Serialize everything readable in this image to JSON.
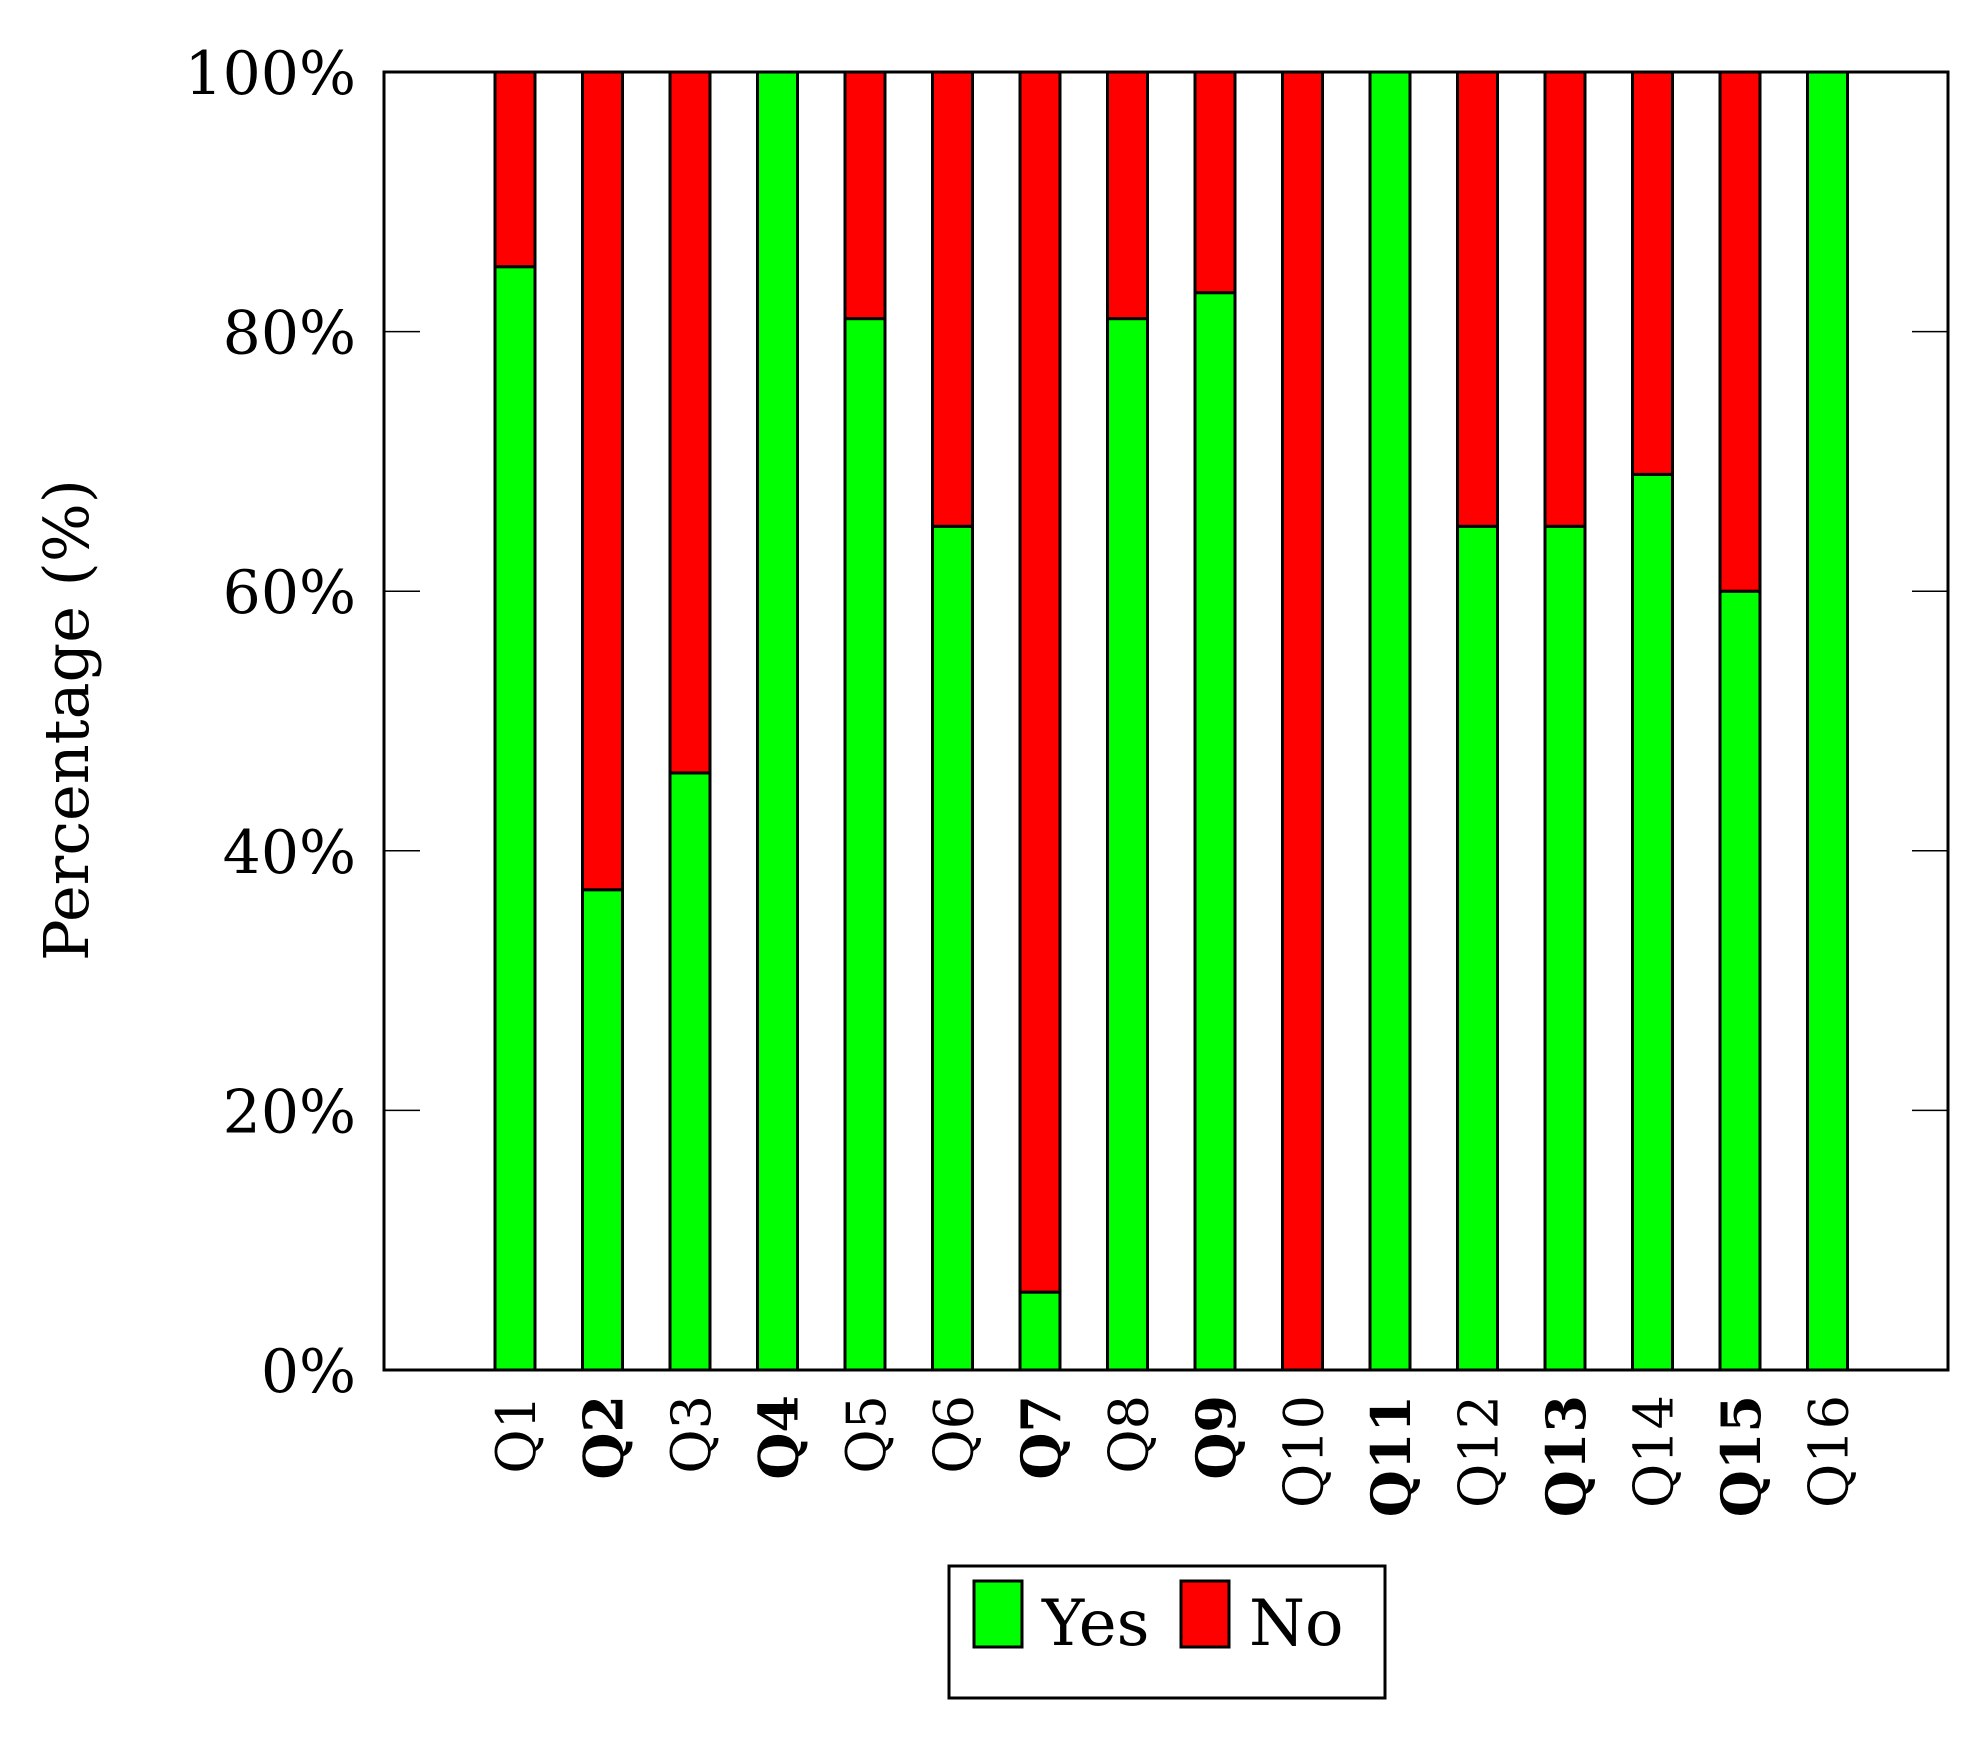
{
  "chart_data": {
    "type": "bar",
    "stacked": true,
    "categories": [
      "Q1",
      "Q2",
      "Q3",
      "Q4",
      "Q5",
      "Q6",
      "Q7",
      "Q8",
      "Q9",
      "Q10",
      "Q11",
      "Q12",
      "Q13",
      "Q14",
      "Q15",
      "Q16"
    ],
    "bold_categories": [
      "Q2",
      "Q4",
      "Q7",
      "Q9",
      "Q11",
      "Q13",
      "Q15"
    ],
    "series": [
      {
        "name": "Yes",
        "color": "#00ff00",
        "values": [
          85,
          37,
          46,
          100,
          81,
          65,
          6,
          81,
          83,
          0,
          100,
          65,
          65,
          69,
          60,
          100
        ]
      },
      {
        "name": "No",
        "color": "#ff0000",
        "values": [
          15,
          63,
          54,
          0,
          19,
          35,
          94,
          19,
          17,
          100,
          0,
          35,
          35,
          31,
          40,
          0
        ]
      }
    ],
    "ylabel": "Percentage (%)",
    "ylim": [
      0,
      100
    ],
    "yticks": [
      0,
      20,
      40,
      60,
      80,
      100
    ],
    "ytick_labels": [
      "0%",
      "20%",
      "40%",
      "60%",
      "80%",
      "100%"
    ],
    "grid": false,
    "legend_position": "bottom-center"
  }
}
